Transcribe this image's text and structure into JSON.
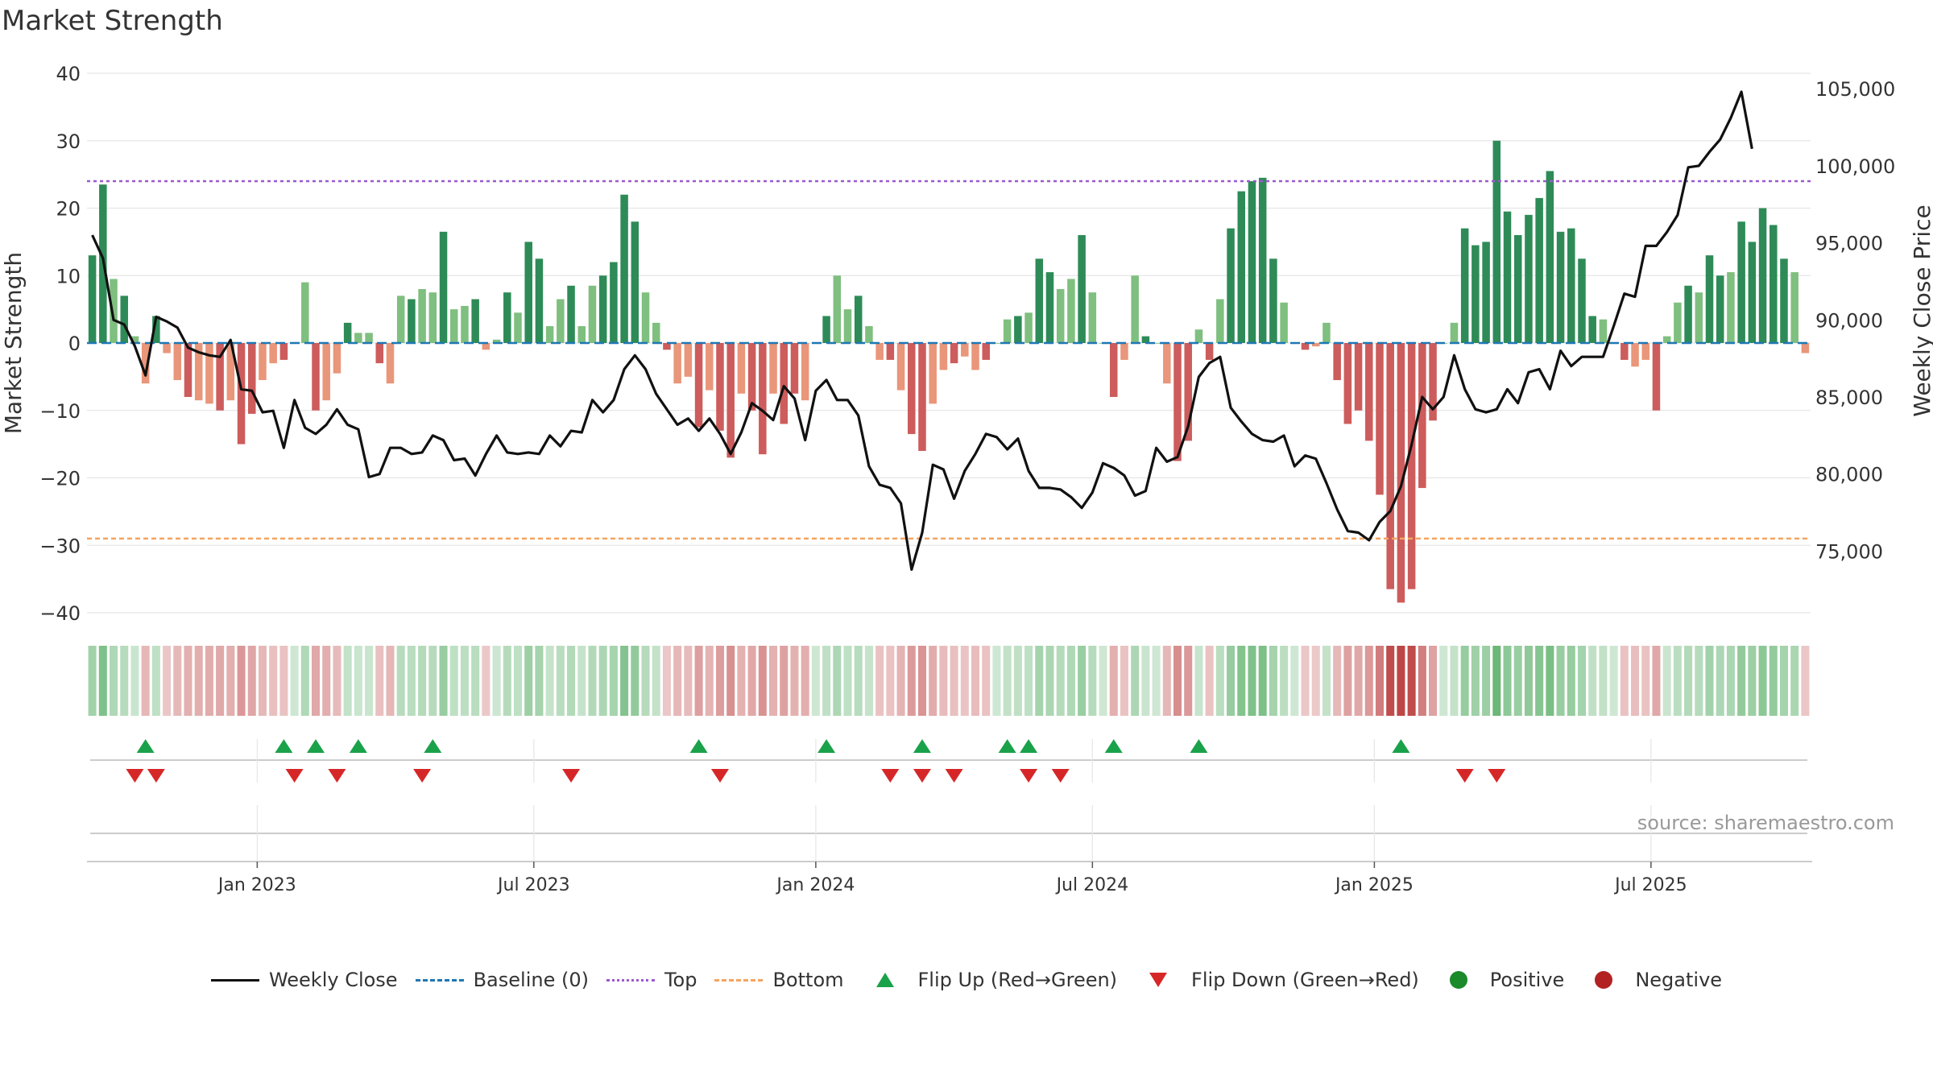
{
  "title": "Market Strength",
  "source": "source: sharemaestro.com",
  "legend": {
    "weekly_close": "Weekly Close",
    "baseline": "Baseline (0)",
    "top": "Top",
    "bottom": "Bottom",
    "flip_up": "Flip Up (Red→Green)",
    "flip_down": "Flip Down (Green→Red)",
    "positive": "Positive",
    "negative": "Negative"
  },
  "colors": {
    "line": "#111111",
    "baseline": "#1f77b4",
    "top": "#9b59d0",
    "bottom": "#f4a460",
    "flip_up": "#1aa24a",
    "flip_down": "#d62728",
    "positive": "#1a8a2a",
    "negative": "#b22222",
    "pos_strong": "#2e8b57",
    "pos_light": "#7fbf7f",
    "neg_strong": "#cd5c5c",
    "neg_light": "#e9967a"
  },
  "chart_data": {
    "type": "bar",
    "title": "Market Strength",
    "ylabel": "Market Strength",
    "ylabel_right": "Weekly Close Price",
    "ylim": [
      -40,
      40
    ],
    "ylim_right": [
      71000,
      106000
    ],
    "yticks": [
      40,
      30,
      20,
      10,
      0,
      -10,
      -20,
      -30,
      -40
    ],
    "yticks_right": [
      105000,
      100000,
      95000,
      90000,
      85000,
      80000,
      75000
    ],
    "yticklabels": [
      "40",
      "30",
      "20",
      "10",
      "0",
      "−10",
      "−20",
      "−30",
      "−40"
    ],
    "yticklabels_right": [
      "105,000",
      "100,000",
      "95,000",
      "90,000",
      "85,000",
      "80,000",
      "75,000"
    ],
    "top_line": 24,
    "bottom_line": -29,
    "x_start": "2022-09-01",
    "x_ticks": [
      {
        "label": "Jan 2023",
        "week": 16
      },
      {
        "label": "Jul 2023",
        "week": 42
      },
      {
        "label": "Jan 2024",
        "week": 68.5
      },
      {
        "label": "Jul 2024",
        "week": 94.5
      },
      {
        "label": "Jan 2025",
        "week": 121
      },
      {
        "label": "Jul 2025",
        "week": 147
      }
    ],
    "series": [
      {
        "name": "Market Strength",
        "values": [
          13,
          23.5,
          9.5,
          7,
          1,
          -6,
          4,
          -1.5,
          -5.5,
          -8,
          -8.5,
          -9,
          -10,
          -8.5,
          -15,
          -10.5,
          -5.5,
          -3,
          -2.5,
          0,
          9,
          -10,
          -8.5,
          -4.5,
          3,
          1.5,
          1.5,
          -3,
          -6,
          7,
          6.5,
          8,
          7.5,
          16.5,
          5,
          5.5,
          6.5,
          -1,
          0.5,
          7.5,
          4.5,
          15,
          12.5,
          2.5,
          6.5,
          8.5,
          2.5,
          8.5,
          10,
          12,
          22,
          18,
          7.5,
          3,
          -1,
          -6,
          -5,
          -12.5,
          -7,
          -13,
          -17,
          -7.5,
          -10,
          -16.5,
          -7.5,
          -12,
          -7.5,
          -8.5,
          0,
          4,
          10,
          5,
          7,
          2.5,
          -2.5,
          -2.5,
          -7,
          -13.5,
          -16,
          -9,
          -4,
          -3,
          -2,
          -4,
          -2.5,
          0,
          3.5,
          4,
          4.5,
          12.5,
          10.5,
          8,
          9.5,
          16,
          7.5,
          0,
          -8,
          -2.5,
          10,
          1,
          0,
          -6,
          -17.5,
          -14.5,
          2,
          -2.5,
          6.5,
          17,
          22.5,
          24,
          24.5,
          12.5,
          6,
          0,
          -1,
          -0.5,
          3,
          -5.5,
          -12,
          -10,
          -14.5,
          -22.5,
          -36.5,
          -38.5,
          -36.5,
          -21.5,
          -11.5,
          0,
          3,
          17,
          14.5,
          15,
          30,
          19.5,
          16,
          19,
          21.5,
          25.5,
          16.5,
          17,
          12.5,
          4,
          3.5,
          0,
          -2.5,
          -3.5,
          -2.5,
          -10,
          1,
          6,
          8.5,
          7.5,
          13,
          10,
          10.5,
          18,
          15,
          20,
          17.5,
          12.5,
          10.5,
          -1.5
        ]
      },
      {
        "name": "Weekly Close",
        "values": [
          95500,
          94000,
          90000,
          89700,
          88300,
          86400,
          90200,
          89900,
          89500,
          88200,
          87900,
          87700,
          87600,
          88700,
          85500,
          85400,
          84000,
          84100,
          81700,
          84800,
          83000,
          82600,
          83200,
          84200,
          83200,
          82900,
          79800,
          80000,
          81700,
          81700,
          81300,
          81400,
          82500,
          82200,
          80900,
          81000,
          79900,
          81300,
          82500,
          81400,
          81300,
          81400,
          81300,
          82500,
          81800,
          82800,
          82700,
          84800,
          84000,
          84800,
          86800,
          87700,
          86800,
          85200,
          84200,
          83200,
          83600,
          82800,
          83600,
          82600,
          81300,
          82700,
          84600,
          84100,
          83500,
          85700,
          84900,
          82200,
          85400,
          86100,
          84800,
          84800,
          83800,
          80500,
          79300,
          79100,
          78100,
          73800,
          76200,
          80600,
          80300,
          78400,
          80200,
          81300,
          82600,
          82400,
          81600,
          82300,
          80200,
          79100,
          79100,
          79000,
          78500,
          77800,
          78800,
          80700,
          80400,
          79900,
          78600,
          78900,
          81700,
          80800,
          81100,
          83100,
          86300,
          87200,
          87600,
          84300,
          83400,
          82600,
          82200,
          82100,
          82500,
          80500,
          81200,
          81000,
          79400,
          77700,
          76300,
          76200,
          75700,
          76900,
          77600,
          79200,
          81900,
          85000,
          84200,
          85000,
          87700,
          85500,
          84200,
          84000,
          84200,
          85500,
          84600,
          86600,
          86800,
          85500,
          88000,
          87000,
          87600,
          87600,
          87600,
          89600,
          91700,
          91500,
          94800,
          94800,
          95700,
          96800,
          99900,
          100000,
          100900,
          101700,
          103100,
          104800,
          101100
        ]
      }
    ],
    "flip_up": [
      5,
      18,
      21,
      25,
      32,
      57,
      69,
      78,
      86,
      88,
      96,
      104,
      123
    ],
    "flip_down": [
      4,
      6,
      19,
      23,
      31,
      45,
      59,
      75,
      78,
      81,
      88,
      91,
      129,
      132
    ]
  }
}
